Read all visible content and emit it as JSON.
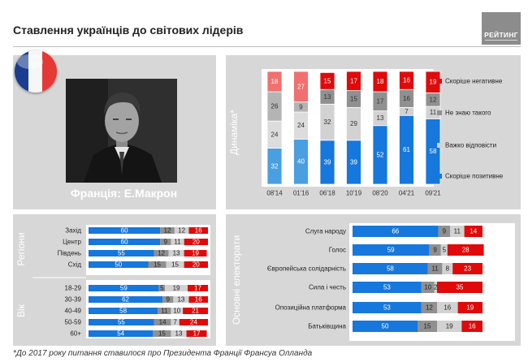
{
  "title": "Ставлення українців до світових лідерів",
  "logo": {
    "text": "РЕЙТИНГ",
    "icon": "rating-logo-icon"
  },
  "person": {
    "label": "Франція: Е.Макрон",
    "flag": "france-flag-icon"
  },
  "footnote": "*До 2017 року питання ставилося про Президента Франції Франсуа Олланда",
  "colors": {
    "positive_light": "#4a9fe0",
    "positive": "#1677dc",
    "unknown_light": "#b4b4b4",
    "unknown": "#909090",
    "hard_light": "#dcdcdc",
    "hard": "#d2d2d2",
    "negative_light": "#f07070",
    "negative": "#e00a0a"
  },
  "chart_data": [
    {
      "id": "dynamics",
      "type": "bar",
      "stacked": true,
      "orientation": "vertical",
      "section_label": "Динаміка*",
      "categories": [
        "08'14",
        "01'16",
        "06'18",
        "10'19",
        "08'20",
        "04'21",
        "09'21"
      ],
      "series": [
        {
          "name": "Скоріше позитивне",
          "values": [
            32,
            40,
            39,
            39,
            52,
            61,
            58
          ]
        },
        {
          "name": "Важко відповісти",
          "values": [
            24,
            24,
            32,
            29,
            13,
            7,
            11
          ]
        },
        {
          "name": "Не знаю такого",
          "values": [
            26,
            9,
            13,
            15,
            17,
            16,
            12
          ]
        },
        {
          "name": "Скоріше негативне",
          "values": [
            18,
            27,
            15,
            17,
            18,
            16,
            19
          ]
        }
      ],
      "legend": [
        "Скоріше негативне",
        "Не знаю такого",
        "Важко відповісти",
        "Скоріше позитивне"
      ],
      "ylim": [
        0,
        100
      ]
    },
    {
      "id": "demographics",
      "type": "bar",
      "stacked": true,
      "orientation": "horizontal",
      "groups": [
        {
          "label": "Регіони",
          "categories": [
            "Захід",
            "Центр",
            "Південь",
            "Схід"
          ]
        },
        {
          "label": "Вік",
          "categories": [
            "18-29",
            "30-39",
            "40-49",
            "50-59",
            "60+"
          ]
        }
      ],
      "categories": [
        "Захід",
        "Центр",
        "Південь",
        "Схід",
        "18-29",
        "30-39",
        "40-49",
        "50-59",
        "60+"
      ],
      "series": [
        {
          "name": "Скоріше позитивне",
          "values": [
            60,
            60,
            55,
            50,
            59,
            62,
            58,
            55,
            54
          ]
        },
        {
          "name": "Не знаю такого",
          "values": [
            12,
            9,
            12,
            15,
            5,
            9,
            11,
            14,
            15
          ]
        },
        {
          "name": "Важко відповісти",
          "values": [
            12,
            11,
            13,
            15,
            19,
            13,
            10,
            7,
            13
          ]
        },
        {
          "name": "Скоріше негативне",
          "values": [
            16,
            20,
            19,
            20,
            17,
            16,
            21,
            24,
            17
          ]
        }
      ],
      "xlim": [
        0,
        100
      ]
    },
    {
      "id": "electorates",
      "type": "bar",
      "stacked": true,
      "orientation": "horizontal",
      "section_label": "Основні електорати",
      "categories": [
        "Слуга народу",
        "Голос",
        "Європейська солідарність",
        "Сила і честь",
        "Опозиційна платформа",
        "Батьківщина"
      ],
      "series": [
        {
          "name": "Скоріше позитивне",
          "values": [
            66,
            59,
            58,
            53,
            53,
            50
          ]
        },
        {
          "name": "Не знаю такого",
          "values": [
            9,
            9,
            11,
            10,
            12,
            15
          ]
        },
        {
          "name": "Важко відповісти",
          "values": [
            11,
            5,
            8,
            2,
            16,
            19
          ]
        },
        {
          "name": "Скоріше негативне",
          "values": [
            14,
            28,
            23,
            35,
            19,
            16
          ]
        }
      ],
      "xlim": [
        0,
        100
      ]
    }
  ]
}
